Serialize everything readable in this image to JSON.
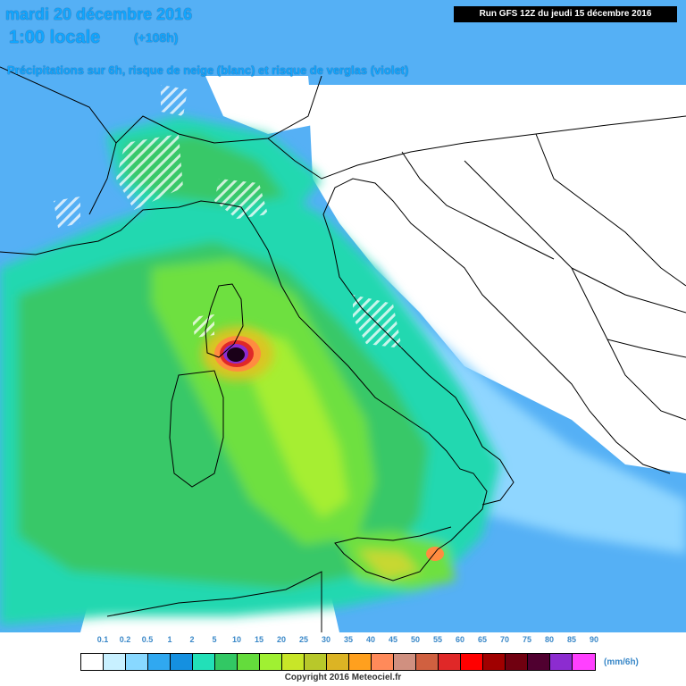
{
  "header": {
    "date": "mardi 20 décembre 2016",
    "local_time": "1:00 locale",
    "lead_time": "(+108h)",
    "subtitle": "Précipitations sur 6h, risque de neige (blanc) et risque de verglas (violet)",
    "run_info": "Run GFS 12Z du jeudi 15 décembre 2016"
  },
  "legend": {
    "unit": "(mm/6h)",
    "ticks": [
      "0.1",
      "0.2",
      "0.5",
      "1",
      "2",
      "5",
      "10",
      "15",
      "20",
      "25",
      "30",
      "35",
      "40",
      "45",
      "50",
      "55",
      "60",
      "65",
      "70",
      "75",
      "80",
      "85",
      "90"
    ],
    "colors": [
      "#ffffff",
      "#c8f0ff",
      "#88d8ff",
      "#30a8f0",
      "#1590e0",
      "#22e0b8",
      "#32c864",
      "#64dc3c",
      "#a0f032",
      "#c8e628",
      "#b8c82a",
      "#dcb424",
      "#ffa01e",
      "#ff8a5a",
      "#d09080",
      "#d06040",
      "#e02828",
      "#ff0000",
      "#a00000",
      "#700010",
      "#500030",
      "#8c2cd0",
      "#ff40ff"
    ]
  },
  "copyright": "Copyright 2016 Meteociel.fr"
}
